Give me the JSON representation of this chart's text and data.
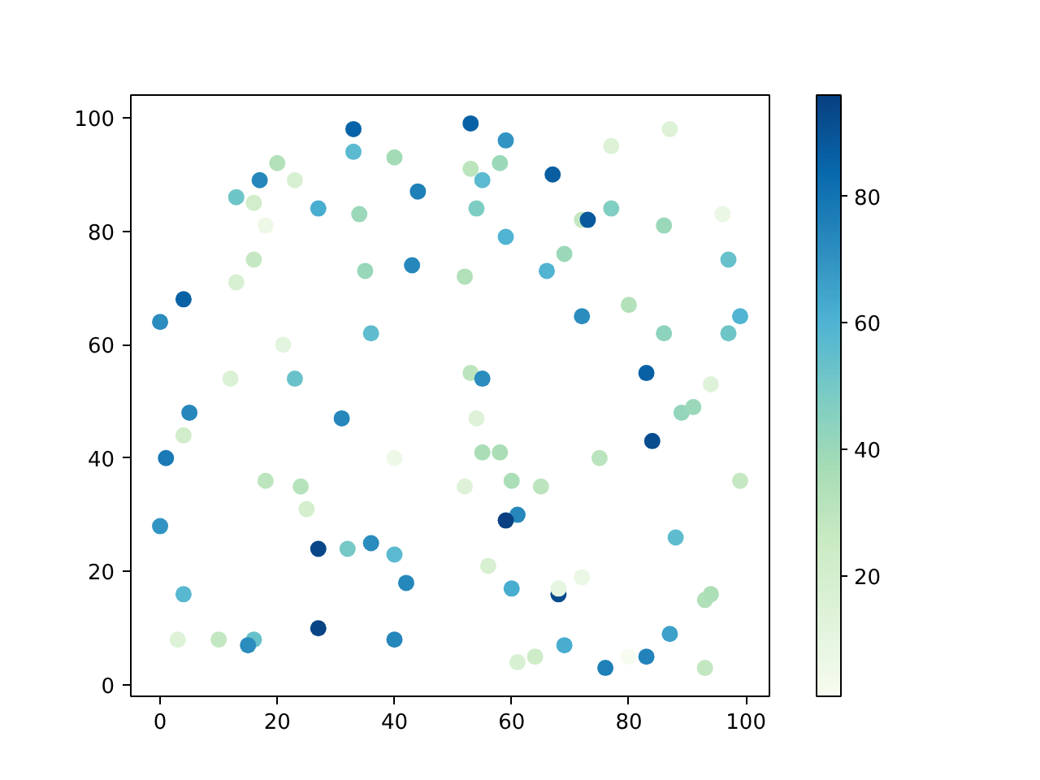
{
  "chart_data": {
    "type": "scatter",
    "x": [
      33,
      53,
      33,
      20,
      23,
      17,
      40,
      53,
      59,
      58,
      55,
      67,
      77,
      87,
      13,
      16,
      18,
      27,
      34,
      44,
      54,
      59,
      69,
      72,
      73,
      77,
      86,
      96,
      97,
      16,
      13,
      35,
      43,
      52,
      66,
      72,
      80,
      0,
      4,
      36,
      21,
      86,
      97,
      99,
      12,
      23,
      53,
      55,
      54,
      83,
      84,
      89,
      91,
      94,
      99,
      5,
      4,
      1,
      31,
      40,
      18,
      24,
      25,
      55,
      58,
      60,
      65,
      75,
      0,
      27,
      32,
      36,
      40,
      42,
      61,
      59,
      88,
      56,
      4,
      3,
      10,
      16,
      15,
      27,
      40,
      60,
      68,
      68,
      72,
      61,
      64,
      69,
      76,
      80,
      83,
      87,
      93,
      94,
      93,
      52
    ],
    "values": [
      98,
      99,
      94,
      92,
      89,
      89,
      93,
      91,
      96,
      92,
      89,
      90,
      95,
      98,
      86,
      85,
      81,
      84,
      83,
      87,
      84,
      79,
      76,
      82,
      82,
      84,
      81,
      83,
      75,
      75,
      71,
      73,
      74,
      72,
      73,
      65,
      67,
      64,
      68,
      62,
      60,
      62,
      62,
      65,
      54,
      54,
      55,
      54,
      47,
      55,
      43,
      48,
      49,
      53,
      36,
      48,
      44,
      40,
      47,
      40,
      36,
      35,
      31,
      41,
      41,
      36,
      35,
      40,
      28,
      24,
      24,
      25,
      23,
      18,
      30,
      29,
      26,
      21,
      16,
      8,
      8,
      8,
      7,
      10,
      8,
      17,
      16,
      17,
      19,
      4,
      5,
      7,
      3,
      5,
      5,
      9,
      15,
      16,
      3,
      35
    ],
    "cvalues": [
      85,
      86,
      57,
      33,
      18,
      74,
      38,
      30,
      70,
      40,
      57,
      87,
      15,
      15,
      52,
      22,
      6,
      62,
      40,
      76,
      48,
      60,
      40,
      28,
      88,
      47,
      40,
      8,
      54,
      27,
      18,
      41,
      74,
      34,
      60,
      72,
      33,
      72,
      86,
      56,
      12,
      44,
      52,
      60,
      16,
      53,
      30,
      72,
      14,
      86,
      92,
      42,
      40,
      14,
      27,
      74,
      22,
      78,
      74,
      6,
      30,
      32,
      20,
      36,
      36,
      36,
      30,
      31,
      70,
      94,
      50,
      72,
      57,
      74,
      74,
      96,
      56,
      18,
      58,
      15,
      28,
      54,
      72,
      95,
      74,
      62,
      93,
      10,
      8,
      18,
      24,
      62,
      76,
      1,
      75,
      66,
      34,
      35,
      28,
      14
    ],
    "clim": [
      1,
      96
    ],
    "cticks": [
      20,
      40,
      60,
      80
    ],
    "xlim": [
      -5,
      104
    ],
    "ylim": [
      -2,
      104
    ],
    "xticks": [
      0,
      20,
      40,
      60,
      80,
      100
    ],
    "yticks": [
      0,
      20,
      40,
      60,
      80,
      100
    ],
    "grid": false,
    "marker": "circle"
  }
}
